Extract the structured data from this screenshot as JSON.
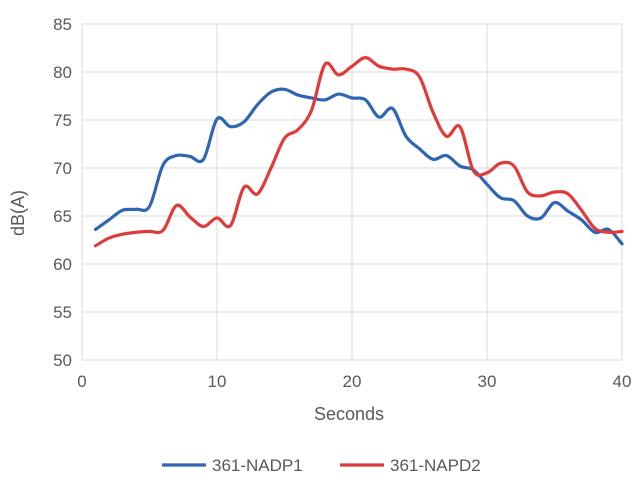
{
  "chart_data": {
    "type": "line",
    "title": "",
    "xlabel": "Seconds",
    "ylabel": "dB(A)",
    "xlim": [
      0,
      40
    ],
    "ylim": [
      50,
      85
    ],
    "xticks": [
      0,
      10,
      20,
      30,
      40
    ],
    "yticks": [
      50,
      55,
      60,
      65,
      70,
      75,
      80,
      85
    ],
    "grid": true,
    "legend_position": "bottom",
    "series": [
      {
        "name": "361-NADP1",
        "color": "#2f66b3",
        "x": [
          1,
          2,
          3,
          4,
          5,
          6,
          7,
          8,
          9,
          10,
          11,
          12,
          13,
          14,
          15,
          16,
          17,
          18,
          19,
          20,
          21,
          22,
          23,
          24,
          25,
          26,
          27,
          28,
          29,
          30,
          31,
          32,
          33,
          34,
          35,
          36,
          37,
          38,
          39,
          40
        ],
        "y": [
          63.6,
          64.6,
          65.6,
          65.7,
          66.0,
          70.3,
          71.3,
          71.2,
          70.9,
          75.1,
          74.3,
          74.8,
          76.6,
          77.9,
          78.2,
          77.6,
          77.3,
          77.1,
          77.7,
          77.3,
          77.1,
          75.3,
          76.2,
          73.3,
          72.0,
          70.9,
          71.3,
          70.2,
          69.8,
          68.3,
          66.9,
          66.6,
          65.0,
          64.8,
          66.4,
          65.5,
          64.6,
          63.3,
          63.6,
          62.1
        ]
      },
      {
        "name": "361-NAPD2",
        "color": "#e03a3a",
        "x": [
          1,
          2,
          3,
          4,
          5,
          6,
          7,
          8,
          9,
          10,
          11,
          12,
          13,
          14,
          15,
          16,
          17,
          18,
          19,
          20,
          21,
          22,
          23,
          24,
          25,
          26,
          27,
          28,
          29,
          30,
          31,
          32,
          33,
          34,
          35,
          36,
          37,
          38,
          39,
          40
        ],
        "y": [
          61.9,
          62.7,
          63.1,
          63.3,
          63.4,
          63.5,
          66.1,
          64.9,
          63.9,
          64.8,
          64.0,
          68.0,
          67.3,
          70.0,
          73.1,
          74.0,
          76.0,
          80.8,
          79.7,
          80.6,
          81.5,
          80.6,
          80.3,
          80.3,
          79.5,
          75.8,
          73.3,
          74.3,
          69.7,
          69.5,
          70.5,
          70.2,
          67.5,
          67.1,
          67.5,
          67.3,
          65.6,
          63.7,
          63.3,
          63.4
        ]
      }
    ]
  }
}
